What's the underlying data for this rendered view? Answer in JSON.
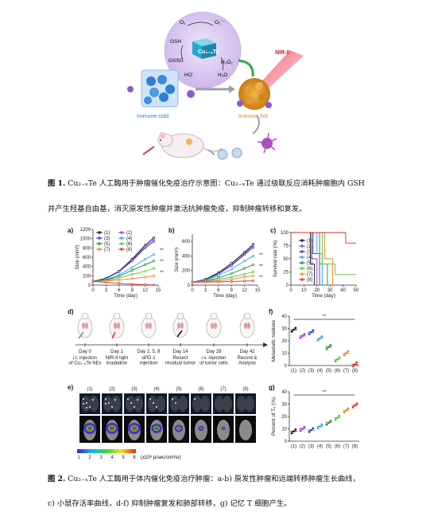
{
  "fig1": {
    "chem_labels": [
      "O₂",
      "O₂˙⁻",
      "GSH",
      "GSSG",
      "HO˙",
      "H₂O₂",
      "H₂O",
      "Cu₂₋ₓTe"
    ],
    "nir_label": "NIR-II",
    "cold_label": "Immune cold",
    "hot_label": "Immune hot",
    "colors": {
      "sphere": "#d9c8f0",
      "cold": "#2f7fd6",
      "hot": "#d98a1a",
      "nir": "#e0162b",
      "arrow": "#9aa0a8"
    }
  },
  "caption1": {
    "lead": "图 1.",
    "line1": " Cu₂₋ₓTe 人工酶用于肿瘤催化免疫治疗示意图：Cu₂₋ₓTe 通过级联反应消耗肿瘤胞内 GSH",
    "line2": "并产生羟基自由基，消灭原发性肿瘤并激活抗肿瘤免疫，抑制肿瘤转移和复发。"
  },
  "fig2": {
    "groups": [
      "(1)",
      "(2)",
      "(3)",
      "(4)",
      "(5)",
      "(6)",
      "(7)",
      "(8)"
    ],
    "series_colors": [
      "#111111",
      "#9b30d9",
      "#1f3fbf",
      "#2aa3d9",
      "#1e8a3a",
      "#56c02b",
      "#e8841a",
      "#e0262a"
    ],
    "panel_a": {
      "label": "a)",
      "ylabel": "Size (mm³)",
      "xlabel": "Time (day)",
      "sig": [
        "**",
        "**",
        "**"
      ]
    },
    "panel_b": {
      "label": "b)",
      "ylabel": "Size (mm³)",
      "xlabel": "Time (day)",
      "sig": [
        "**",
        "**",
        "**"
      ]
    },
    "panel_c": {
      "label": "c)",
      "ylabel": "Survival rate (%)",
      "xlabel": "Time (day)"
    },
    "panel_d": {
      "label": "d)",
      "timeline": [
        {
          "day": "Day 0",
          "desc": "i.t. injection\nof Cu₂₋ₓTe NEs"
        },
        {
          "day": "Day 1",
          "desc": "NIR-II light\nirradiation"
        },
        {
          "day": "Day 2, 5, 8",
          "desc": "αPD-1\ninjection"
        },
        {
          "day": "Day 14",
          "desc": "Resect\nresidual tumor"
        },
        {
          "day": "Day 28",
          "desc": "i.v. injection\nof tumor cells"
        },
        {
          "day": "Day 42",
          "desc": "Record &\nAnalysis"
        }
      ]
    },
    "panel_e": {
      "label": "e)",
      "scale_ticks": [
        "1",
        "2",
        "3",
        "4",
        "5",
        "6"
      ],
      "scale_unit": "(x10⁶ p/sec/cm²/sr)"
    },
    "panel_f": {
      "label": "f)",
      "ylabel": "Metastatic nodules",
      "sig": "**"
    },
    "panel_g": {
      "label": "g)",
      "ylabel": "Percent of Tₑ (%)",
      "sig": "**"
    }
  },
  "caption2": {
    "lead": "图 2.",
    "line1": " Cu₂₋ₓTe 人工酶用于体内催化免疫治疗肿瘤：a-b) 原发性肿瘤和远端转移肿瘤生长曲线，",
    "line2": "c) 小鼠存活率曲线，d-f) 抑制肿瘤复发和肺部转移，g) 记忆 T 细胞产生。"
  },
  "chart_data": [
    {
      "type": "line",
      "panel": "a",
      "xlabel": "Time (day)",
      "ylabel": "Size (mm³)",
      "xlim": [
        0,
        15
      ],
      "ylim": [
        0,
        1200
      ],
      "x": [
        0,
        3,
        6,
        9,
        12,
        14
      ],
      "xticks": [
        0,
        3,
        6,
        9,
        12,
        15
      ],
      "yticks": [
        0,
        200,
        400,
        600,
        800,
        1000,
        1200
      ],
      "series": [
        {
          "name": "(1)",
          "values": [
            80,
            150,
            300,
            560,
            860,
            1020
          ]
        },
        {
          "name": "(2)",
          "values": [
            80,
            140,
            290,
            540,
            830,
            980
          ]
        },
        {
          "name": "(3)",
          "values": [
            80,
            145,
            290,
            520,
            800,
            940
          ]
        },
        {
          "name": "(4)",
          "values": [
            80,
            120,
            220,
            380,
            560,
            660
          ]
        },
        {
          "name": "(5)",
          "values": [
            80,
            110,
            190,
            320,
            440,
            520
          ]
        },
        {
          "name": "(6)",
          "values": [
            80,
            100,
            150,
            230,
            300,
            360
          ]
        },
        {
          "name": "(7)",
          "values": [
            80,
            90,
            110,
            140,
            170,
            200
          ]
        },
        {
          "name": "(8)",
          "values": [
            80,
            60,
            40,
            20,
            10,
            5
          ]
        }
      ]
    },
    {
      "type": "line",
      "panel": "b",
      "xlabel": "Time (day)",
      "ylabel": "Size (mm³)",
      "xlim": [
        0,
        15
      ],
      "ylim": [
        0,
        700
      ],
      "x": [
        0,
        3,
        6,
        9,
        12,
        14
      ],
      "xticks": [
        0,
        3,
        6,
        9,
        12,
        15
      ],
      "yticks": [
        0,
        200,
        400,
        600
      ],
      "series": [
        {
          "name": "(1)",
          "values": [
            40,
            80,
            170,
            300,
            450,
            560
          ]
        },
        {
          "name": "(2)",
          "values": [
            40,
            75,
            160,
            280,
            430,
            540
          ]
        },
        {
          "name": "(3)",
          "values": [
            40,
            75,
            150,
            270,
            420,
            520
          ]
        },
        {
          "name": "(4)",
          "values": [
            40,
            70,
            130,
            220,
            330,
            400
          ]
        },
        {
          "name": "(5)",
          "values": [
            40,
            60,
            100,
            160,
            230,
            280
          ]
        },
        {
          "name": "(6)",
          "values": [
            40,
            55,
            80,
            110,
            150,
            180
          ]
        },
        {
          "name": "(7)",
          "values": [
            40,
            50,
            60,
            80,
            110,
            130
          ]
        },
        {
          "name": "(8)",
          "values": [
            40,
            42,
            45,
            50,
            55,
            60
          ]
        }
      ]
    },
    {
      "type": "line",
      "panel": "c",
      "xlabel": "Time (day)",
      "ylabel": "Survival rate (%)",
      "xlim": [
        0,
        50
      ],
      "ylim": [
        0,
        100
      ],
      "xticks": [
        0,
        10,
        20,
        30,
        40,
        50
      ],
      "yticks": [
        0,
        25,
        50,
        75,
        100
      ],
      "series": [
        {
          "name": "(1)",
          "x": [
            0,
            15,
            15,
            18,
            18
          ],
          "values": [
            100,
            100,
            40,
            40,
            0
          ]
        },
        {
          "name": "(2)",
          "x": [
            0,
            16,
            16,
            20,
            20
          ],
          "values": [
            100,
            100,
            50,
            50,
            0
          ]
        },
        {
          "name": "(3)",
          "x": [
            0,
            17,
            17,
            22,
            22
          ],
          "values": [
            100,
            100,
            60,
            60,
            0
          ]
        },
        {
          "name": "(4)",
          "x": [
            0,
            20,
            20,
            24,
            24
          ],
          "values": [
            100,
            100,
            60,
            60,
            0
          ]
        },
        {
          "name": "(5)",
          "x": [
            0,
            22,
            22,
            28,
            28
          ],
          "values": [
            100,
            100,
            40,
            40,
            0
          ]
        },
        {
          "name": "(6)",
          "x": [
            0,
            24,
            24,
            34,
            34,
            50
          ],
          "values": [
            100,
            100,
            40,
            40,
            20,
            20
          ]
        },
        {
          "name": "(7)",
          "x": [
            0,
            26,
            26,
            32,
            32
          ],
          "values": [
            100,
            100,
            50,
            50,
            0
          ]
        },
        {
          "name": "(8)",
          "x": [
            0,
            42,
            42,
            50
          ],
          "values": [
            100,
            100,
            80,
            80
          ]
        }
      ]
    },
    {
      "type": "scatter",
      "panel": "f",
      "ylabel": "Metastatic nodules",
      "ylim": [
        0,
        40
      ],
      "yticks": [
        0,
        10,
        20,
        30,
        40
      ],
      "categories": [
        "(1)",
        "(2)",
        "(3)",
        "(4)",
        "(5)",
        "(6)",
        "(7)",
        "(8)"
      ],
      "values": [
        29,
        24,
        27,
        22,
        15,
        5,
        10,
        1
      ]
    },
    {
      "type": "scatter",
      "panel": "g",
      "ylabel": "Percent of Tₑ (%)",
      "ylim": [
        0,
        40
      ],
      "yticks": [
        0,
        10,
        20,
        30,
        40
      ],
      "categories": [
        "(1)",
        "(2)",
        "(3)",
        "(4)",
        "(5)",
        "(6)",
        "(7)",
        "(8)"
      ],
      "values": [
        8,
        10,
        9,
        12,
        15,
        19,
        25,
        29
      ]
    }
  ]
}
